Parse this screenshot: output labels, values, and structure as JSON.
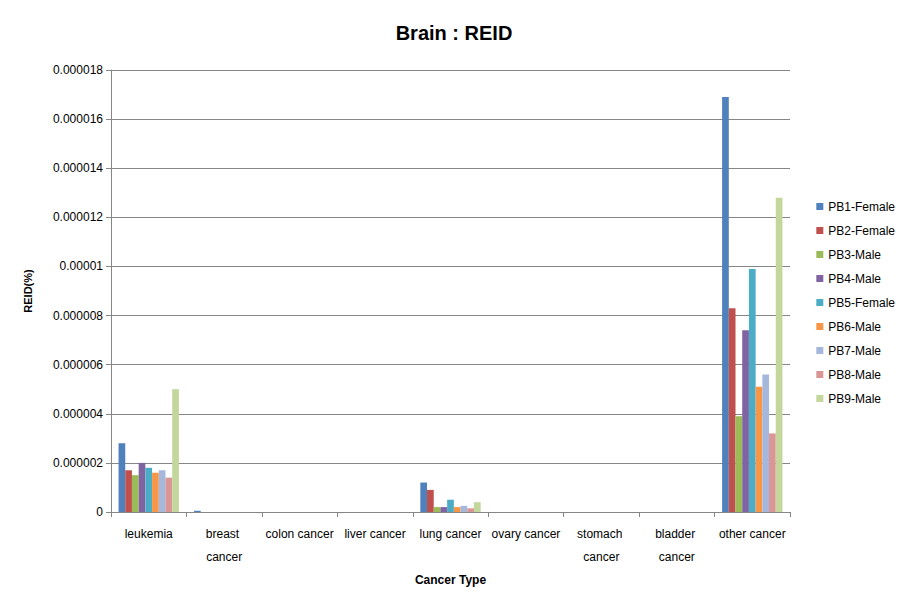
{
  "chart_data": {
    "type": "bar",
    "title": "Brain : REID",
    "x_label": "Cancer Type",
    "y_label": "REID(%)",
    "categories": [
      "leukemia",
      "breast cancer",
      "colon cancer",
      "liver cancer",
      "lung cancer",
      "ovary cancer",
      "stomach cancer",
      "bladder cancer",
      "other cancer"
    ],
    "series": [
      {
        "name": "PB1-Female",
        "color": "#4F81BD",
        "values": [
          2.8e-06,
          5e-08,
          0,
          0,
          1.2e-06,
          0,
          0,
          0,
          1.69e-05
        ]
      },
      {
        "name": "PB2-Female",
        "color": "#C0504D",
        "values": [
          1.7e-06,
          0,
          0,
          0,
          9e-07,
          0,
          0,
          0,
          8.3e-06
        ]
      },
      {
        "name": "PB3-Male",
        "color": "#9BBB59",
        "values": [
          1.5e-06,
          0,
          0,
          0,
          2e-07,
          0,
          0,
          0,
          3.9e-06
        ]
      },
      {
        "name": "PB4-Male",
        "color": "#8064A2",
        "values": [
          2e-06,
          0,
          0,
          0,
          2e-07,
          0,
          0,
          0,
          7.4e-06
        ]
      },
      {
        "name": "PB5-Female",
        "color": "#4BACC6",
        "values": [
          1.8e-06,
          0,
          0,
          0,
          5e-07,
          0,
          0,
          0,
          9.9e-06
        ]
      },
      {
        "name": "PB6-Male",
        "color": "#F79646",
        "values": [
          1.6e-06,
          0,
          0,
          0,
          2e-07,
          0,
          0,
          0,
          5.1e-06
        ]
      },
      {
        "name": "PB7-Male",
        "color": "#A5B8DC",
        "values": [
          1.7e-06,
          0,
          0,
          0,
          2.5e-07,
          0,
          0,
          0,
          5.6e-06
        ]
      },
      {
        "name": "PB8-Male",
        "color": "#D99694",
        "values": [
          1.4e-06,
          0,
          0,
          0,
          1.5e-07,
          0,
          0,
          0,
          3.2e-06
        ]
      },
      {
        "name": "PB9-Male",
        "color": "#C3D69B",
        "values": [
          5e-06,
          0,
          0,
          0,
          4e-07,
          0,
          0,
          0,
          1.28e-05
        ]
      }
    ],
    "ylim": [
      0,
      1.8e-05
    ],
    "yticks": [
      0,
      2e-06,
      4e-06,
      6e-06,
      8e-06,
      1e-05,
      1.2e-05,
      1.4e-05,
      1.6e-05,
      1.8e-05
    ],
    "grid": true,
    "legend": "right"
  }
}
